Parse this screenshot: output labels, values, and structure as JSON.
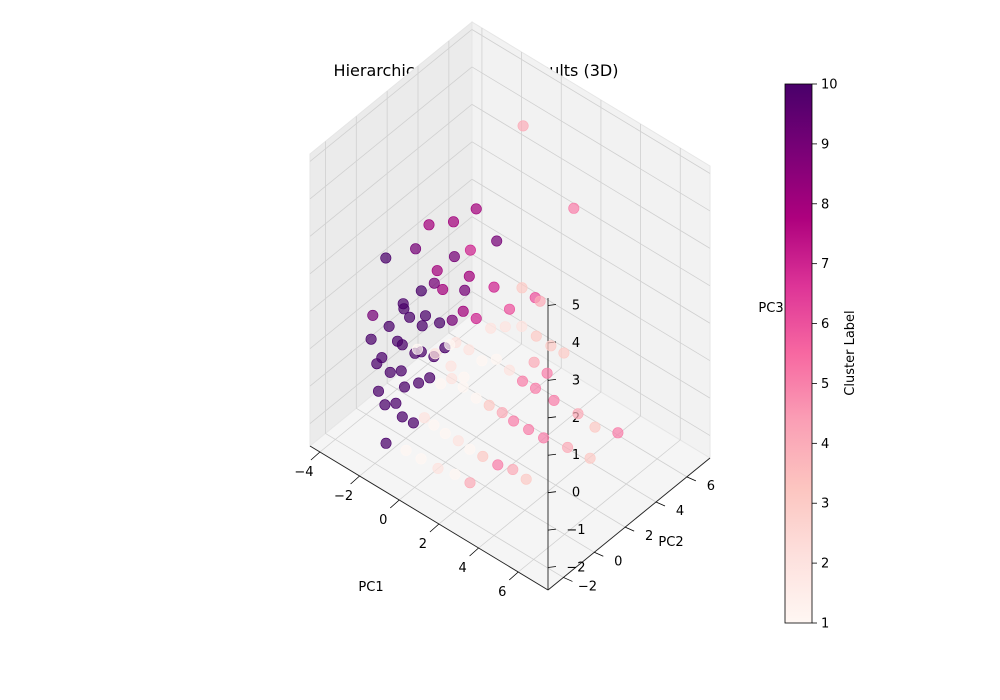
{
  "chart_data": {
    "type": "scatter",
    "projection": "3d",
    "title": "Hierarchical Clustering Results (3D)",
    "xlabel": "PC1",
    "ylabel": "PC2",
    "zlabel": "PC3",
    "xlim": [
      -4.5,
      7.5
    ],
    "ylim": [
      -3,
      7.5
    ],
    "zlim": [
      -2.6,
      5.2
    ],
    "xticks": [
      "−4",
      "−2",
      "0",
      "2",
      "4",
      "6"
    ],
    "yticks": [
      "−2",
      "0",
      "2",
      "4",
      "6"
    ],
    "zticks": [
      "−2",
      "−1",
      "0",
      "1",
      "2",
      "3",
      "4",
      "5"
    ],
    "grid": true,
    "colormap": "RdPu",
    "colorbar": {
      "label": "Cluster Label",
      "min": 1,
      "max": 10,
      "ticks": [
        "1",
        "2",
        "3",
        "4",
        "5",
        "6",
        "7",
        "8",
        "9",
        "10"
      ]
    },
    "points": [
      {
        "x": 0.8,
        "y": 4.0,
        "z": 5.3,
        "cluster": 4
      },
      {
        "x": 3.2,
        "y": 4.2,
        "z": 3.8,
        "cluster": 5
      },
      {
        "x": -2.0,
        "y": 1.5,
        "z": 2.6,
        "cluster": 8
      },
      {
        "x": -1.0,
        "y": 1.8,
        "z": 2.9,
        "cluster": 8
      },
      {
        "x": -0.4,
        "y": 2.5,
        "z": 3.2,
        "cluster": 8
      },
      {
        "x": 0.4,
        "y": 2.8,
        "z": 2.5,
        "cluster": 9
      },
      {
        "x": -0.3,
        "y": 2.0,
        "z": 2.3,
        "cluster": 7
      },
      {
        "x": 1.8,
        "y": 3.5,
        "z": 1.2,
        "cluster": 6
      },
      {
        "x": -3.4,
        "y": 0.5,
        "z": 1.6,
        "cluster": 10
      },
      {
        "x": -2.6,
        "y": 1.4,
        "z": 1.8,
        "cluster": 9
      },
      {
        "x": -1.2,
        "y": 1.0,
        "z": 1.8,
        "cluster": 8
      },
      {
        "x": -0.8,
        "y": 1.6,
        "z": 2.1,
        "cluster": 9
      },
      {
        "x": -0.2,
        "y": 1.8,
        "z": 1.7,
        "cluster": 8
      },
      {
        "x": 0.5,
        "y": 2.5,
        "z": 1.4,
        "cluster": 7
      },
      {
        "x": 1.2,
        "y": 2.6,
        "z": 1.0,
        "cluster": 6
      },
      {
        "x": -1.5,
        "y": 1.2,
        "z": 1.3,
        "cluster": 9
      },
      {
        "x": -2.0,
        "y": 1.0,
        "z": 1.0,
        "cluster": 10
      },
      {
        "x": -2.6,
        "y": 0.6,
        "z": 0.6,
        "cluster": 10
      },
      {
        "x": -2.8,
        "y": 0.9,
        "z": 0.3,
        "cluster": 10
      },
      {
        "x": -2.2,
        "y": 0.5,
        "z": 0.4,
        "cluster": 10
      },
      {
        "x": -1.8,
        "y": 0.8,
        "z": 0.2,
        "cluster": 10
      },
      {
        "x": -1.4,
        "y": 0.5,
        "z": 0.7,
        "cluster": 10
      },
      {
        "x": -1.0,
        "y": 0.9,
        "z": 0.5,
        "cluster": 10
      },
      {
        "x": -0.6,
        "y": 1.2,
        "z": 0.6,
        "cluster": 9
      },
      {
        "x": -0.2,
        "y": 1.4,
        "z": 0.9,
        "cluster": 8
      },
      {
        "x": 0.3,
        "y": 1.6,
        "z": 0.8,
        "cluster": 7
      },
      {
        "x": 0.8,
        "y": 1.9,
        "z": 0.6,
        "cluster": 2
      },
      {
        "x": 1.3,
        "y": 2.2,
        "z": 0.7,
        "cluster": 2
      },
      {
        "x": 1.9,
        "y": 2.5,
        "z": 0.8,
        "cluster": 2
      },
      {
        "x": 2.4,
        "y": 2.8,
        "z": 0.6,
        "cluster": 3
      },
      {
        "x": 2.9,
        "y": 3.1,
        "z": 0.4,
        "cluster": 3
      },
      {
        "x": 3.4,
        "y": 3.3,
        "z": 0.3,
        "cluster": 3
      },
      {
        "x": 2.6,
        "y": 2.4,
        "z": 0.1,
        "cluster": 4
      },
      {
        "x": 3.1,
        "y": 2.6,
        "z": -0.1,
        "cluster": 5
      },
      {
        "x": -3.0,
        "y": 0.2,
        "z": 0.0,
        "cluster": 10
      },
      {
        "x": -2.5,
        "y": 0.1,
        "z": -0.2,
        "cluster": 10
      },
      {
        "x": -2.1,
        "y": -0.1,
        "z": -0.1,
        "cluster": 10
      },
      {
        "x": -1.7,
        "y": 0.2,
        "z": -0.3,
        "cluster": 10
      },
      {
        "x": -1.3,
        "y": 0.1,
        "z": -0.1,
        "cluster": 10
      },
      {
        "x": -0.9,
        "y": 0.4,
        "z": -0.2,
        "cluster": 10
      },
      {
        "x": -0.5,
        "y": 0.6,
        "z": 0.1,
        "cluster": 10
      },
      {
        "x": -0.1,
        "y": 0.8,
        "z": 0.3,
        "cluster": 2
      },
      {
        "x": 0.4,
        "y": 1.0,
        "z": 0.2,
        "cluster": 2
      },
      {
        "x": 0.9,
        "y": 1.2,
        "z": 0.0,
        "cluster": 1
      },
      {
        "x": 1.4,
        "y": 1.5,
        "z": 0.1,
        "cluster": 1
      },
      {
        "x": 1.9,
        "y": 1.7,
        "z": -0.1,
        "cluster": 2
      },
      {
        "x": 2.4,
        "y": 1.9,
        "z": -0.3,
        "cluster": 5
      },
      {
        "x": 2.9,
        "y": 2.1,
        "z": -0.4,
        "cluster": 5
      },
      {
        "x": 3.6,
        "y": 2.4,
        "z": -0.6,
        "cluster": 5
      },
      {
        "x": 4.5,
        "y": 2.8,
        "z": -0.8,
        "cluster": 4
      },
      {
        "x": 5.2,
        "y": 3.0,
        "z": -1.0,
        "cluster": 3
      },
      {
        "x": 6.2,
        "y": 3.2,
        "z": -0.9,
        "cluster": 5
      },
      {
        "x": -2.9,
        "y": -0.4,
        "z": -0.6,
        "cluster": 10
      },
      {
        "x": -2.4,
        "y": -0.5,
        "z": -0.8,
        "cluster": 10
      },
      {
        "x": -2.0,
        "y": -0.3,
        "z": -0.7,
        "cluster": 10
      },
      {
        "x": -1.6,
        "y": -0.6,
        "z": -0.9,
        "cluster": 10
      },
      {
        "x": -1.2,
        "y": -0.2,
        "z": -0.8,
        "cluster": 10
      },
      {
        "x": -0.8,
        "y": 0.0,
        "z": -0.6,
        "cluster": 10
      },
      {
        "x": -0.4,
        "y": 0.2,
        "z": -0.7,
        "cluster": 1
      },
      {
        "x": 0.0,
        "y": 0.4,
        "z": -0.5,
        "cluster": 2
      },
      {
        "x": 0.5,
        "y": 0.5,
        "z": -0.6,
        "cluster": 1
      },
      {
        "x": 1.0,
        "y": 0.7,
        "z": -0.8,
        "cluster": 1
      },
      {
        "x": 1.5,
        "y": 0.9,
        "z": -0.9,
        "cluster": 3
      },
      {
        "x": 2.0,
        "y": 1.1,
        "z": -1.0,
        "cluster": 4
      },
      {
        "x": 2.5,
        "y": 1.2,
        "z": -1.1,
        "cluster": 5
      },
      {
        "x": 3.1,
        "y": 1.4,
        "z": -1.2,
        "cluster": 5
      },
      {
        "x": 3.7,
        "y": 1.6,
        "z": -1.3,
        "cluster": 5
      },
      {
        "x": 4.6,
        "y": 2.0,
        "z": -1.4,
        "cluster": 4
      },
      {
        "x": 5.5,
        "y": 2.3,
        "z": -1.5,
        "cluster": 3
      },
      {
        "x": -2.6,
        "y": -1.0,
        "z": -1.2,
        "cluster": 10
      },
      {
        "x": -2.2,
        "y": -1.1,
        "z": -1.4,
        "cluster": 10
      },
      {
        "x": -1.8,
        "y": -0.9,
        "z": -1.3,
        "cluster": 10
      },
      {
        "x": -1.4,
        "y": -1.0,
        "z": -1.5,
        "cluster": 10
      },
      {
        "x": -1.0,
        "y": -0.8,
        "z": -1.6,
        "cluster": 10
      },
      {
        "x": -0.6,
        "y": -0.6,
        "z": -1.4,
        "cluster": 2
      },
      {
        "x": -0.2,
        "y": -0.5,
        "z": -1.5,
        "cluster": 1
      },
      {
        "x": 0.3,
        "y": -0.4,
        "z": -1.6,
        "cluster": 1
      },
      {
        "x": 0.8,
        "y": -0.2,
        "z": -1.7,
        "cluster": 2
      },
      {
        "x": 1.3,
        "y": -0.1,
        "z": -1.8,
        "cluster": 1
      },
      {
        "x": 1.8,
        "y": 0.1,
        "z": -1.9,
        "cluster": 3
      },
      {
        "x": 2.4,
        "y": 0.3,
        "z": -2.0,
        "cluster": 5
      },
      {
        "x": 3.0,
        "y": 0.5,
        "z": -2.0,
        "cluster": 4
      },
      {
        "x": 3.6,
        "y": 0.6,
        "z": -2.1,
        "cluster": 3
      },
      {
        "x": -1.6,
        "y": -1.8,
        "z": -2.0,
        "cluster": 10
      },
      {
        "x": -0.9,
        "y": -1.4,
        "z": -2.1,
        "cluster": 1
      },
      {
        "x": -0.3,
        "y": -1.2,
        "z": -2.2,
        "cluster": 1
      },
      {
        "x": 0.4,
        "y": -1.0,
        "z": -2.3,
        "cluster": 2
      },
      {
        "x": 1.1,
        "y": -0.8,
        "z": -2.3,
        "cluster": 1
      },
      {
        "x": 1.7,
        "y": -0.6,
        "z": -2.4,
        "cluster": 4
      },
      {
        "x": -2.3,
        "y": -1.5,
        "z": -0.2,
        "cluster": 10
      },
      {
        "x": -1.1,
        "y": -0.4,
        "z": 0.2,
        "cluster": 1
      },
      {
        "x": 0.2,
        "y": 0.1,
        "z": 0.0,
        "cluster": 2
      },
      {
        "x": 0.7,
        "y": 0.3,
        "z": -0.2,
        "cluster": 1
      },
      {
        "x": -3.2,
        "y": -0.6,
        "z": 0.5,
        "cluster": 9
      },
      {
        "x": -3.6,
        "y": -0.2,
        "z": -0.4,
        "cluster": 10
      },
      {
        "x": 1.6,
        "y": 2.9,
        "z": 1.6,
        "cluster": 3
      },
      {
        "x": 2.2,
        "y": 3.3,
        "z": 1.3,
        "cluster": 4
      },
      {
        "x": -0.9,
        "y": 2.4,
        "z": 0.9,
        "cluster": 9
      },
      {
        "x": -1.7,
        "y": 2.0,
        "z": 0.8,
        "cluster": 8
      },
      {
        "x": 0.1,
        "y": -0.8,
        "z": 0.6,
        "cluster": 2
      },
      {
        "x": 0.6,
        "y": -0.5,
        "z": 0.9,
        "cluster": 1
      }
    ]
  }
}
